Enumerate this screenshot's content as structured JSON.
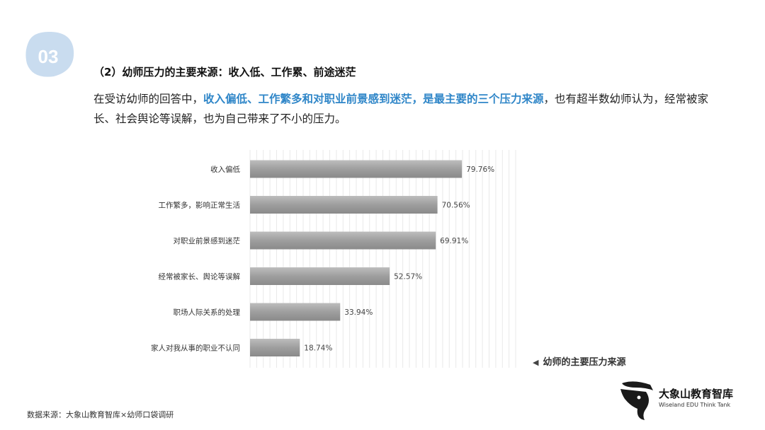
{
  "badge": {
    "number": "03",
    "color": "#c9dcef"
  },
  "section_title": "（2）幼师压力的主要来源：收入低、工作累、前途迷茫",
  "intro": {
    "part1": "在受访幼师的回答中，",
    "highlight": "收入偏低、工作繁多和对职业前景感到迷茫，是最主要的三个压力来源",
    "part2": "，也有超半数幼师认为，经常被家长、社会舆论等误解，也为自己带来了不小的压力。",
    "highlight_color": "#2f86c8"
  },
  "chart_data": {
    "type": "bar",
    "orientation": "horizontal",
    "categories": [
      "收入偏低",
      "工作繁多，影响正常生活",
      "对职业前景感到迷茫",
      "经常被家长、舆论等误解",
      "职场人际关系的处理",
      "家人对我从事的职业不认同"
    ],
    "values": [
      79.76,
      70.56,
      69.91,
      52.57,
      33.94,
      18.74
    ],
    "labels": [
      "79.76%",
      "70.56%",
      "69.91%",
      "52.57%",
      "33.94%",
      "18.74%"
    ],
    "unit": "%",
    "xlim": [
      0,
      100
    ],
    "grid": true,
    "bar_color": "#9e9e9e"
  },
  "chart_caption": "幼师的主要压力来源",
  "caption_marker": "◀",
  "source": "数据来源：大象山教育智库×幼师口袋调研",
  "logo": {
    "name": "大象山教育智库",
    "tagline": "Wiseland EDU Think Tank"
  }
}
